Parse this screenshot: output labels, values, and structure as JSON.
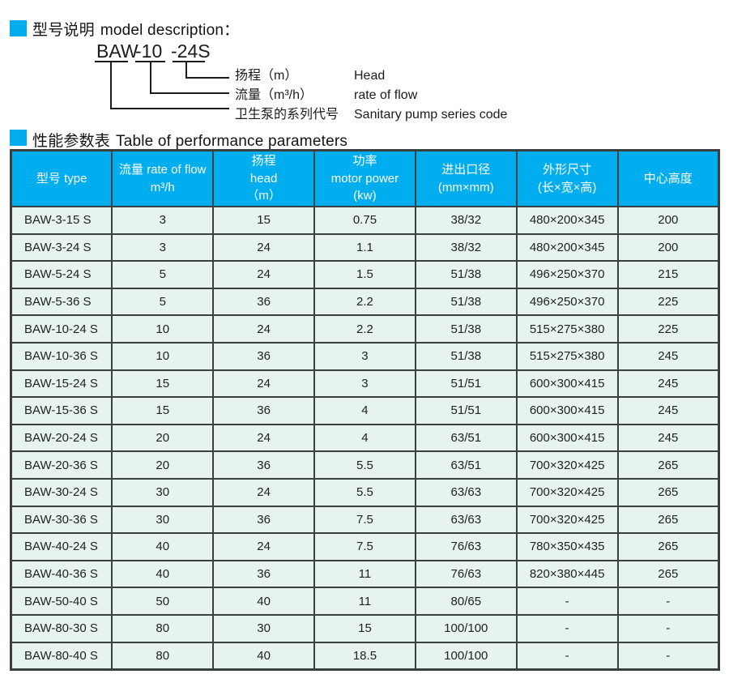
{
  "accent_color": "#00aeef",
  "row_bg_color": "#e7f4ee",
  "border_color": "#3a4040",
  "section_model": {
    "title_zh": "型号说明",
    "title_en": "model description："
  },
  "diagram": {
    "segments": {
      "series": "BAW",
      "flow": "-10",
      "head": "-24S"
    },
    "labels": [
      {
        "zh": "扬程（m）",
        "en": "Head"
      },
      {
        "zh": "流量（m³/h）",
        "en": "rate of flow"
      },
      {
        "zh": "卫生泵的系列代号",
        "en": "Sanitary pump series code"
      }
    ]
  },
  "section_table": {
    "title_zh": "性能参数表",
    "title_en": "Table of performance parameters"
  },
  "table": {
    "headers": [
      {
        "lines": [
          "型号 type"
        ]
      },
      {
        "lines": [
          "流量 rate of flow",
          "m³/h"
        ]
      },
      {
        "lines": [
          "扬程",
          "head",
          "（m）"
        ]
      },
      {
        "lines": [
          "功率",
          "motor power",
          "(kw)"
        ]
      },
      {
        "lines": [
          "进出口径",
          "(mm×mm)"
        ]
      },
      {
        "lines": [
          "外形尺寸",
          "(长×宽×高)"
        ]
      },
      {
        "lines": [
          "中心高度"
        ]
      }
    ],
    "rows": [
      [
        "BAW-3-15 S",
        "3",
        "15",
        "0.75",
        "38/32",
        "480×200×345",
        "200"
      ],
      [
        "BAW-3-24 S",
        "3",
        "24",
        "1.1",
        "38/32",
        "480×200×345",
        "200"
      ],
      [
        "BAW-5-24 S",
        "5",
        "24",
        "1.5",
        "51/38",
        "496×250×370",
        "215"
      ],
      [
        "BAW-5-36 S",
        "5",
        "36",
        "2.2",
        "51/38",
        "496×250×370",
        "225"
      ],
      [
        "BAW-10-24 S",
        "10",
        "24",
        "2.2",
        "51/38",
        "515×275×380",
        "225"
      ],
      [
        "BAW-10-36 S",
        "10",
        "36",
        "3",
        "51/38",
        "515×275×380",
        "245"
      ],
      [
        "BAW-15-24 S",
        "15",
        "24",
        "3",
        "51/51",
        "600×300×415",
        "245"
      ],
      [
        "BAW-15-36 S",
        "15",
        "36",
        "4",
        "51/51",
        "600×300×415",
        "245"
      ],
      [
        "BAW-20-24 S",
        "20",
        "24",
        "4",
        "63/51",
        "600×300×415",
        "245"
      ],
      [
        "BAW-20-36 S",
        "20",
        "36",
        "5.5",
        "63/51",
        "700×320×425",
        "265"
      ],
      [
        "BAW-30-24 S",
        "30",
        "24",
        "5.5",
        "63/63",
        "700×320×425",
        "265"
      ],
      [
        "BAW-30-36 S",
        "30",
        "36",
        "7.5",
        "63/63",
        "700×320×425",
        "265"
      ],
      [
        "BAW-40-24 S",
        "40",
        "24",
        "7.5",
        "76/63",
        "780×350×435",
        "265"
      ],
      [
        "BAW-40-36 S",
        "40",
        "36",
        "11",
        "76/63",
        "820×380×445",
        "265"
      ],
      [
        "BAW-50-40 S",
        "50",
        "40",
        "11",
        "80/65",
        "-",
        "-"
      ],
      [
        "BAW-80-30 S",
        "80",
        "30",
        "15",
        "100/100",
        "-",
        "-"
      ],
      [
        "BAW-80-40 S",
        "80",
        "40",
        "18.5",
        "100/100",
        "-",
        "-"
      ]
    ]
  }
}
